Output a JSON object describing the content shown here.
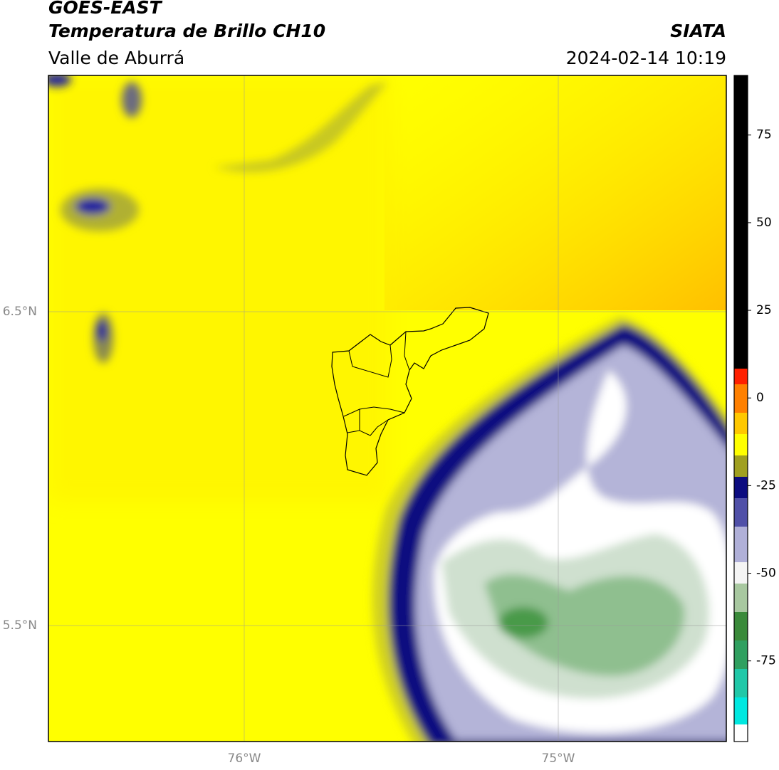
{
  "header": {
    "title": "GOES-EAST",
    "subtitle": "Temperatura de Brillo CH10",
    "region": "Valle de Aburrá",
    "source": "SIATA",
    "datetime": "2024-02-14 10:19"
  },
  "map": {
    "lon_labels": [
      "76°W",
      "75°W"
    ],
    "lat_labels": [
      "6.5°N",
      "5.5°N"
    ]
  },
  "colorbar": {
    "lim": [
      -98,
      92
    ],
    "ticks": [
      75,
      50,
      25,
      0,
      -25,
      -50,
      -75
    ]
  }
}
